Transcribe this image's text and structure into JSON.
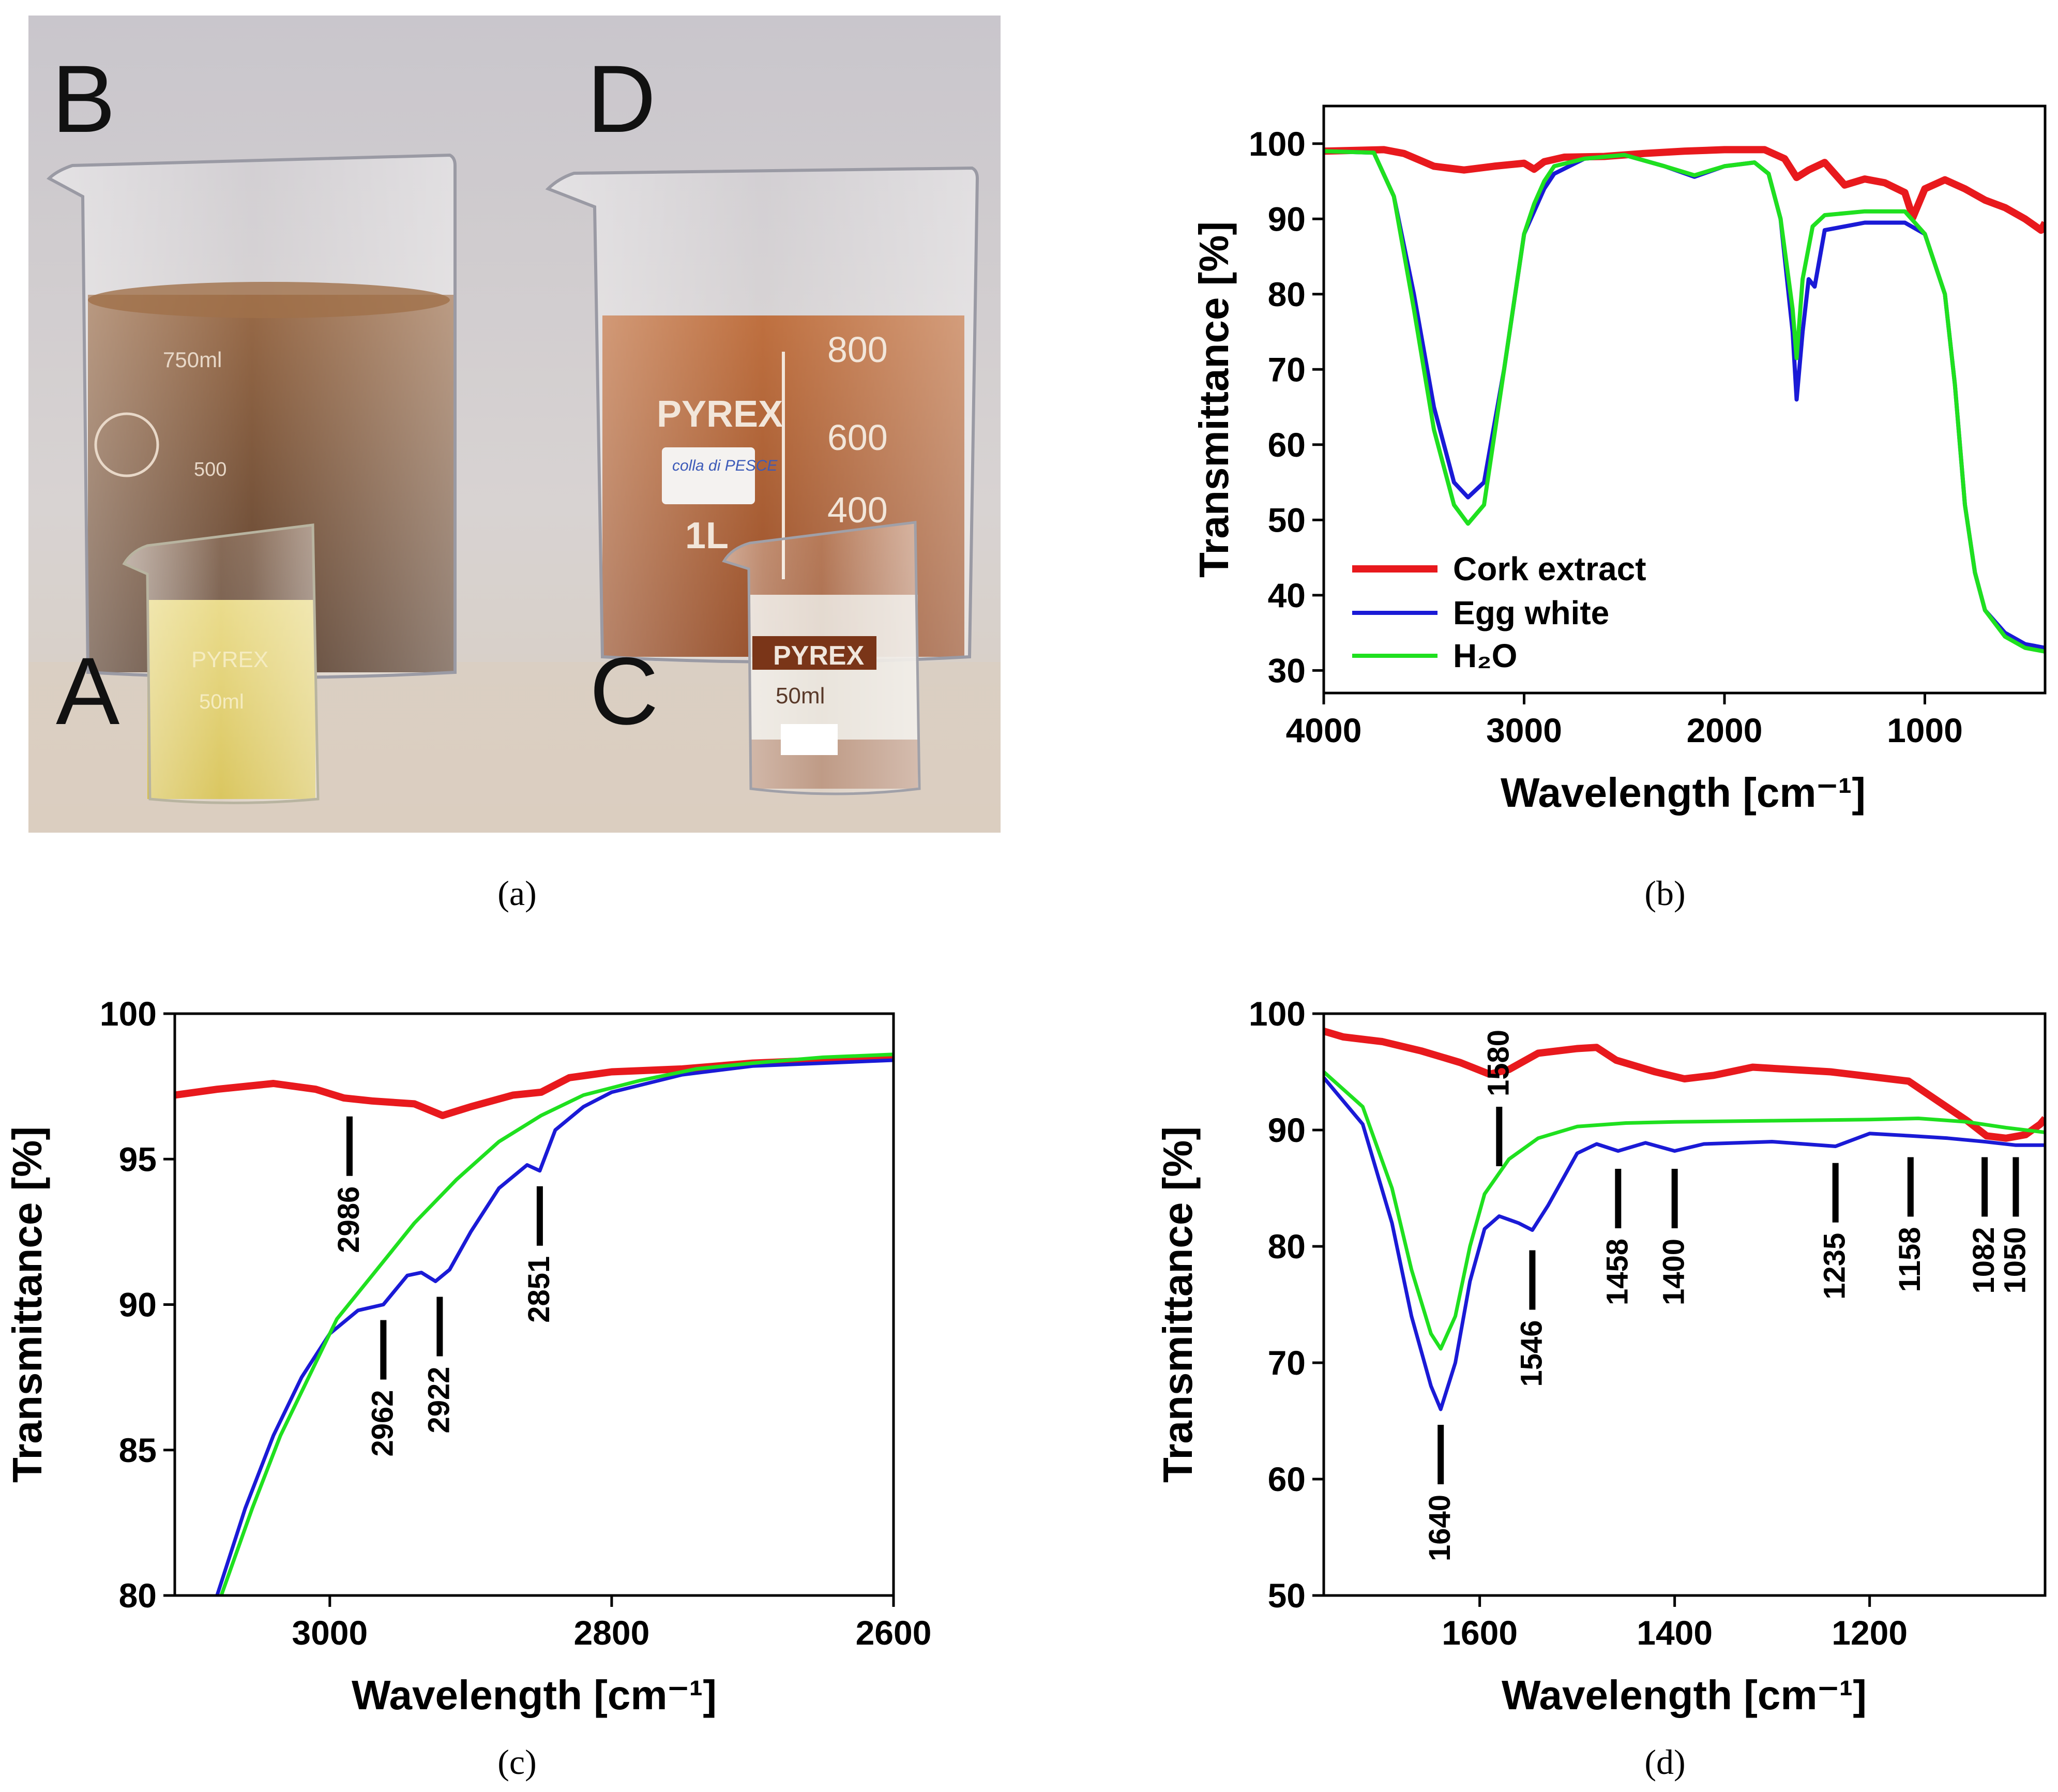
{
  "photo": {
    "beaker_labels": [
      "B",
      "D",
      "A",
      "C"
    ],
    "beaker_prints": [
      "750ml",
      "500",
      "PYREX",
      "800",
      "600",
      "400",
      "1L",
      "PYREX",
      "50ml",
      "PYREX",
      "50ml"
    ],
    "handwritten_note": "colla di PESCE"
  },
  "colors": {
    "cork": "#e8191d",
    "egg": "#1a1ad6",
    "h2o": "#1fe01f",
    "axis": "#000000"
  },
  "captions": [
    "(a)",
    "(b)",
    "(c)",
    "(d)"
  ],
  "chart_data": [
    {
      "panel": "b",
      "type": "line",
      "xlabel": "Wavelength [cm⁻¹]",
      "ylabel": "Transmittance [%]",
      "xlim": [
        4000,
        400
      ],
      "ylim": [
        27,
        105
      ],
      "xticks": [
        4000,
        3000,
        2000,
        1000
      ],
      "yticks": [
        30,
        40,
        50,
        60,
        70,
        80,
        90,
        100
      ],
      "legend": "bottom-left",
      "series": [
        {
          "name": "Cork extract",
          "color": "#e8191d",
          "points": [
            [
              4000,
              99
            ],
            [
              3700,
              99.2
            ],
            [
              3600,
              98.7
            ],
            [
              3450,
              97
            ],
            [
              3300,
              96.5
            ],
            [
              3150,
              97
            ],
            [
              3000,
              97.4
            ],
            [
              2950,
              96.6
            ],
            [
              2900,
              97.6
            ],
            [
              2800,
              98.2
            ],
            [
              2600,
              98.3
            ],
            [
              2400,
              98.7
            ],
            [
              2200,
              99
            ],
            [
              2000,
              99.2
            ],
            [
              1800,
              99.2
            ],
            [
              1700,
              98
            ],
            [
              1640,
              95.5
            ],
            [
              1580,
              96.5
            ],
            [
              1500,
              97.5
            ],
            [
              1400,
              94.5
            ],
            [
              1300,
              95.3
            ],
            [
              1200,
              94.8
            ],
            [
              1100,
              93.5
            ],
            [
              1060,
              90.2
            ],
            [
              1000,
              94
            ],
            [
              900,
              95.2
            ],
            [
              800,
              94
            ],
            [
              700,
              92.5
            ],
            [
              600,
              91.5
            ],
            [
              500,
              90
            ],
            [
              420,
              88.5
            ],
            [
              400,
              89.5
            ]
          ]
        },
        {
          "name": "Egg white",
          "color": "#1a1ad6",
          "points": [
            [
              4000,
              99
            ],
            [
              3750,
              98.8
            ],
            [
              3650,
              93
            ],
            [
              3550,
              80
            ],
            [
              3450,
              65
            ],
            [
              3350,
              55
            ],
            [
              3280,
              53
            ],
            [
              3200,
              55
            ],
            [
              3100,
              70
            ],
            [
              3000,
              88
            ],
            [
              2950,
              91
            ],
            [
              2900,
              94
            ],
            [
              2850,
              96
            ],
            [
              2700,
              98
            ],
            [
              2500,
              98.5
            ],
            [
              2300,
              97
            ],
            [
              2150,
              95.6
            ],
            [
              2000,
              97
            ],
            [
              1850,
              97.5
            ],
            [
              1780,
              96
            ],
            [
              1720,
              90
            ],
            [
              1660,
              75
            ],
            [
              1640,
              66
            ],
            [
              1610,
              75
            ],
            [
              1580,
              82
            ],
            [
              1550,
              81
            ],
            [
              1500,
              88.5
            ],
            [
              1400,
              89
            ],
            [
              1300,
              89.5
            ],
            [
              1200,
              89.5
            ],
            [
              1100,
              89.5
            ],
            [
              1000,
              88
            ],
            [
              900,
              80
            ],
            [
              850,
              68
            ],
            [
              800,
              52
            ],
            [
              750,
              43
            ],
            [
              700,
              38
            ],
            [
              600,
              35
            ],
            [
              500,
              33.5
            ],
            [
              400,
              33
            ]
          ]
        },
        {
          "name": "H₂O",
          "color": "#1fe01f",
          "points": [
            [
              4000,
              99
            ],
            [
              3750,
              98.8
            ],
            [
              3650,
              93
            ],
            [
              3550,
              78
            ],
            [
              3450,
              62
            ],
            [
              3350,
              52
            ],
            [
              3280,
              49.5
            ],
            [
              3200,
              52
            ],
            [
              3100,
              70
            ],
            [
              3000,
              88
            ],
            [
              2950,
              92
            ],
            [
              2900,
              95
            ],
            [
              2850,
              97
            ],
            [
              2700,
              98
            ],
            [
              2500,
              98.5
            ],
            [
              2300,
              97
            ],
            [
              2150,
              95.8
            ],
            [
              2000,
              97
            ],
            [
              1850,
              97.5
            ],
            [
              1780,
              96
            ],
            [
              1720,
              90
            ],
            [
              1660,
              78
            ],
            [
              1640,
              71.5
            ],
            [
              1610,
              82
            ],
            [
              1560,
              89
            ],
            [
              1500,
              90.5
            ],
            [
              1300,
              91
            ],
            [
              1100,
              91
            ],
            [
              1000,
              88
            ],
            [
              900,
              80
            ],
            [
              850,
              68
            ],
            [
              800,
              52
            ],
            [
              750,
              43
            ],
            [
              700,
              38
            ],
            [
              600,
              34.5
            ],
            [
              500,
              33
            ],
            [
              400,
              32.5
            ]
          ]
        }
      ]
    },
    {
      "panel": "c",
      "type": "line",
      "xlabel": "Wavelength [cm⁻¹]",
      "ylabel": "Transmittance [%]",
      "xlim": [
        3110,
        2600
      ],
      "ylim": [
        80,
        100
      ],
      "xticks": [
        3000,
        2800,
        2600
      ],
      "yticks": [
        80,
        85,
        90,
        95,
        100
      ],
      "annotations": [
        {
          "label": "2986",
          "x": 2986,
          "y": 97
        },
        {
          "label": "2962",
          "x": 2962,
          "y": 90
        },
        {
          "label": "2922",
          "x": 2922,
          "y": 90.8
        },
        {
          "label": "2851",
          "x": 2851,
          "y": 94.6
        }
      ],
      "series": [
        {
          "name": "Cork extract",
          "color": "#e8191d",
          "points": [
            [
              3110,
              97.2
            ],
            [
              3080,
              97.4
            ],
            [
              3040,
              97.6
            ],
            [
              3010,
              97.4
            ],
            [
              2990,
              97.1
            ],
            [
              2970,
              97
            ],
            [
              2940,
              96.9
            ],
            [
              2920,
              96.5
            ],
            [
              2900,
              96.8
            ],
            [
              2870,
              97.2
            ],
            [
              2850,
              97.3
            ],
            [
              2830,
              97.8
            ],
            [
              2800,
              98
            ],
            [
              2750,
              98.1
            ],
            [
              2700,
              98.3
            ],
            [
              2650,
              98.4
            ],
            [
              2600,
              98.5
            ]
          ]
        },
        {
          "name": "Egg white",
          "color": "#1a1ad6",
          "points": [
            [
              3080,
              80
            ],
            [
              3060,
              83
            ],
            [
              3040,
              85.5
            ],
            [
              3020,
              87.5
            ],
            [
              3000,
              89
            ],
            [
              2980,
              89.8
            ],
            [
              2962,
              90
            ],
            [
              2945,
              91
            ],
            [
              2935,
              91.1
            ],
            [
              2925,
              90.8
            ],
            [
              2915,
              91.2
            ],
            [
              2900,
              92.5
            ],
            [
              2880,
              94
            ],
            [
              2860,
              94.8
            ],
            [
              2851,
              94.6
            ],
            [
              2840,
              96
            ],
            [
              2820,
              96.8
            ],
            [
              2800,
              97.3
            ],
            [
              2750,
              97.9
            ],
            [
              2700,
              98.2
            ],
            [
              2650,
              98.3
            ],
            [
              2600,
              98.4
            ]
          ]
        },
        {
          "name": "H₂O",
          "color": "#1fe01f",
          "points": [
            [
              3077,
              80
            ],
            [
              3055,
              83
            ],
            [
              3035,
              85.5
            ],
            [
              3015,
              87.5
            ],
            [
              2995,
              89.5
            ],
            [
              2970,
              91
            ],
            [
              2940,
              92.8
            ],
            [
              2910,
              94.3
            ],
            [
              2880,
              95.6
            ],
            [
              2850,
              96.5
            ],
            [
              2820,
              97.2
            ],
            [
              2780,
              97.7
            ],
            [
              2740,
              98.1
            ],
            [
              2700,
              98.3
            ],
            [
              2650,
              98.5
            ],
            [
              2600,
              98.6
            ]
          ]
        }
      ]
    },
    {
      "panel": "d",
      "type": "line",
      "xlabel": "Wavelength [cm⁻¹]",
      "ylabel": "Transmittance [%]",
      "xlim": [
        1760,
        1020
      ],
      "ylim": [
        50,
        100
      ],
      "xticks": [
        1600,
        1400,
        1200
      ],
      "yticks": [
        50,
        60,
        70,
        80,
        90,
        100
      ],
      "annotations": [
        {
          "label": "1580",
          "x": 1580,
          "y": 94
        },
        {
          "label": "1640",
          "x": 1640,
          "y": 66
        },
        {
          "label": "1546",
          "x": 1546,
          "y": 81
        },
        {
          "label": "1458",
          "x": 1458,
          "y": 88
        },
        {
          "label": "1400",
          "x": 1400,
          "y": 88
        },
        {
          "label": "1235",
          "x": 1235,
          "y": 88.5
        },
        {
          "label": "1158",
          "x": 1158,
          "y": 89
        },
        {
          "label": "1082",
          "x": 1082,
          "y": 89
        },
        {
          "label": "1050",
          "x": 1050,
          "y": 89
        }
      ],
      "series": [
        {
          "name": "Cork extract",
          "color": "#e8191d",
          "points": [
            [
              1760,
              98.5
            ],
            [
              1740,
              98
            ],
            [
              1700,
              97.6
            ],
            [
              1660,
              96.8
            ],
            [
              1620,
              95.8
            ],
            [
              1590,
              94.8
            ],
            [
              1570,
              95.2
            ],
            [
              1540,
              96.6
            ],
            [
              1500,
              97
            ],
            [
              1480,
              97.1
            ],
            [
              1460,
              96
            ],
            [
              1420,
              95
            ],
            [
              1390,
              94.4
            ],
            [
              1360,
              94.7
            ],
            [
              1320,
              95.4
            ],
            [
              1280,
              95.2
            ],
            [
              1240,
              95
            ],
            [
              1200,
              94.6
            ],
            [
              1160,
              94.2
            ],
            [
              1130,
              92.5
            ],
            [
              1100,
              90.8
            ],
            [
              1080,
              89.5
            ],
            [
              1060,
              89.3
            ],
            [
              1040,
              89.6
            ],
            [
              1025,
              90.5
            ],
            [
              1020,
              91
            ]
          ]
        },
        {
          "name": "Egg white",
          "color": "#1a1ad6",
          "points": [
            [
              1760,
              94.5
            ],
            [
              1720,
              90.5
            ],
            [
              1690,
              82
            ],
            [
              1670,
              74
            ],
            [
              1650,
              68
            ],
            [
              1640,
              66
            ],
            [
              1625,
              70
            ],
            [
              1610,
              77
            ],
            [
              1595,
              81.5
            ],
            [
              1580,
              82.6
            ],
            [
              1560,
              82
            ],
            [
              1546,
              81.4
            ],
            [
              1530,
              83.5
            ],
            [
              1500,
              88
            ],
            [
              1480,
              88.8
            ],
            [
              1458,
              88.2
            ],
            [
              1430,
              88.9
            ],
            [
              1400,
              88.2
            ],
            [
              1370,
              88.8
            ],
            [
              1300,
              89
            ],
            [
              1235,
              88.6
            ],
            [
              1200,
              89.7
            ],
            [
              1158,
              89.5
            ],
            [
              1120,
              89.3
            ],
            [
              1082,
              89
            ],
            [
              1050,
              88.7
            ],
            [
              1020,
              88.7
            ]
          ]
        },
        {
          "name": "H₂O",
          "color": "#1fe01f",
          "points": [
            [
              1760,
              95
            ],
            [
              1720,
              92
            ],
            [
              1690,
              85
            ],
            [
              1670,
              78
            ],
            [
              1650,
              72.5
            ],
            [
              1640,
              71.2
            ],
            [
              1625,
              74
            ],
            [
              1610,
              80
            ],
            [
              1595,
              84.5
            ],
            [
              1570,
              87.5
            ],
            [
              1540,
              89.3
            ],
            [
              1500,
              90.3
            ],
            [
              1450,
              90.6
            ],
            [
              1400,
              90.7
            ],
            [
              1300,
              90.8
            ],
            [
              1200,
              90.9
            ],
            [
              1150,
              91
            ],
            [
              1100,
              90.7
            ],
            [
              1060,
              90.2
            ],
            [
              1020,
              89.8
            ]
          ]
        }
      ]
    }
  ]
}
